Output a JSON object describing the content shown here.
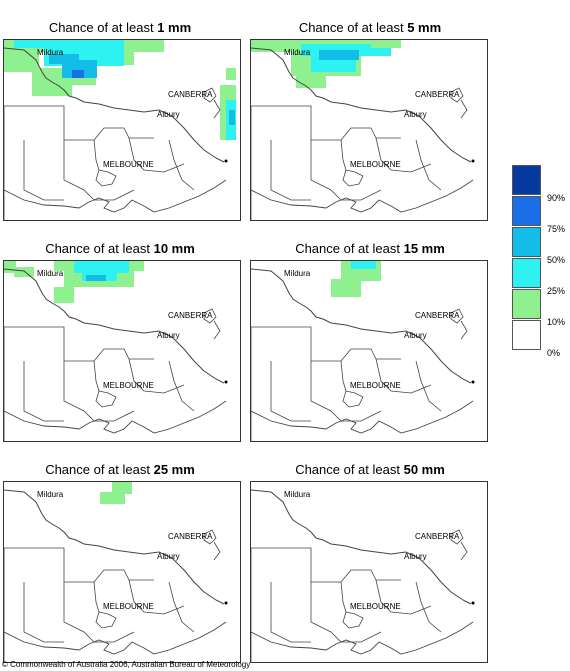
{
  "panels": [
    {
      "prefix": "Chance of at least ",
      "amount": "1 mm"
    },
    {
      "prefix": "Chance of at least ",
      "amount": "5 mm"
    },
    {
      "prefix": "Chance of at least ",
      "amount": "10 mm"
    },
    {
      "prefix": "Chance of at least ",
      "amount": "15 mm"
    },
    {
      "prefix": "Chance of at least ",
      "amount": "25 mm"
    },
    {
      "prefix": "Chance of at least ",
      "amount": "50 mm"
    }
  ],
  "cities": {
    "mildura": "Mildura",
    "canberra": "CANBERRA",
    "albury": "Albury",
    "melbourne": "MELBOURNE"
  },
  "legend": [
    {
      "label": "90%",
      "color": "#063a9e"
    },
    {
      "label": "75%",
      "color": "#1b6fe6"
    },
    {
      "label": "50%",
      "color": "#14bde8"
    },
    {
      "label": "25%",
      "color": "#2ef2f2"
    },
    {
      "label": "10%",
      "color": "#8ef08e"
    },
    {
      "label": "0%",
      "color": "#ffffff"
    }
  ],
  "copyright": "© Commonwealth of Australia 2006, Australian Bureau of Meteorology"
}
